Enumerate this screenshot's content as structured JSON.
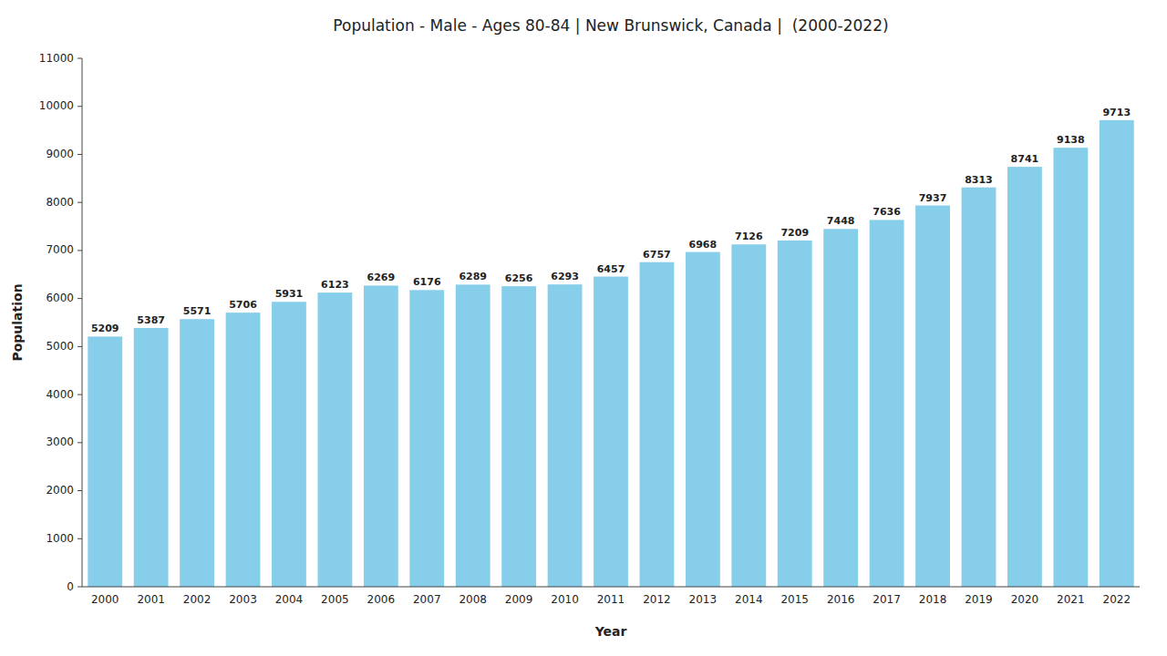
{
  "chart_data": {
    "type": "bar",
    "title": "Population - Male - Ages 80-84 | New Brunswick, Canada |  (2000-2022)",
    "x_label": "Year",
    "y_label": "Population",
    "categories": [
      "2000",
      "2001",
      "2002",
      "2003",
      "2004",
      "2005",
      "2006",
      "2007",
      "2008",
      "2009",
      "2010",
      "2011",
      "2012",
      "2013",
      "2014",
      "2015",
      "2016",
      "2017",
      "2018",
      "2019",
      "2020",
      "2021",
      "2022"
    ],
    "values": [
      5209,
      5387,
      5571,
      5706,
      5931,
      6123,
      6269,
      6176,
      6289,
      6256,
      6293,
      6457,
      6757,
      6968,
      7126,
      7209,
      7448,
      7636,
      7937,
      8313,
      8741,
      9138,
      9713
    ],
    "color": "#87CEEB",
    "ylim": [
      0,
      11000
    ],
    "yticks": [
      0,
      1000,
      2000,
      3000,
      4000,
      5000,
      6000,
      7000,
      8000,
      9000,
      10000,
      11000
    ],
    "grid": false,
    "data_labels": true
  }
}
